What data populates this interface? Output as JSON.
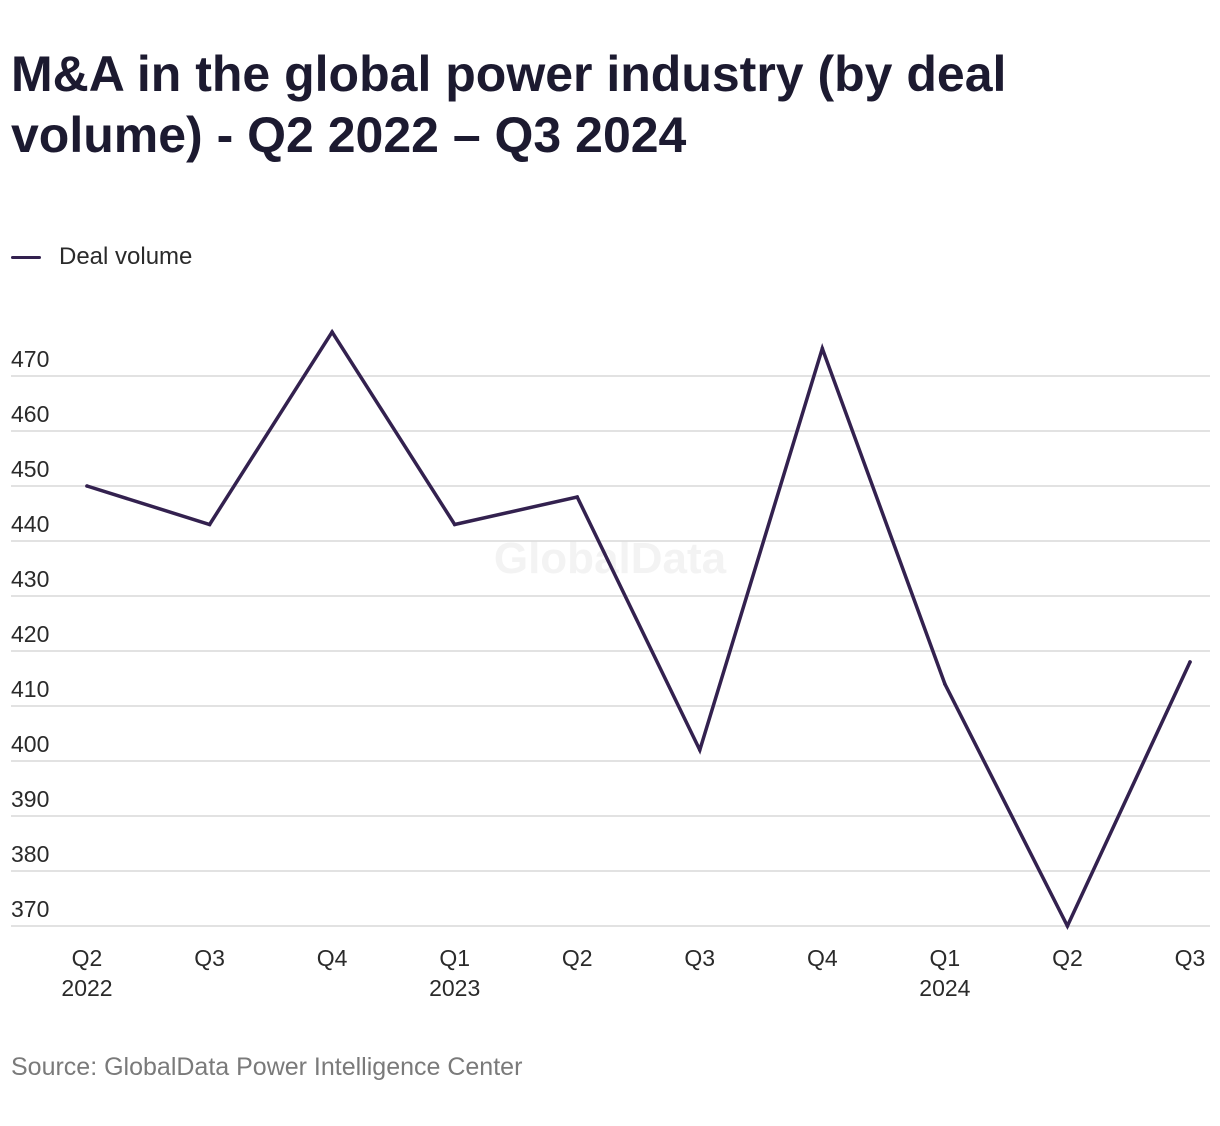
{
  "title": "M&A in the global power industry (by deal volume) - Q2 2022 – Q3 2024",
  "legend": {
    "label": "Deal volume"
  },
  "watermark": "GlobalData",
  "source": "Source: GlobalData Power Intelligence Center",
  "colors": {
    "line": "#33214f",
    "grid": "#d9d9d9",
    "tick_text": "#2a2a2a",
    "title": "#1c1a30",
    "source": "#7a7a7a",
    "watermark": "#f3f3f3"
  },
  "chart_data": {
    "type": "line",
    "title": "M&A in the global power industry (by deal volume) - Q2 2022 – Q3 2024",
    "categories": [
      "Q2 2022",
      "Q3 2022",
      "Q4 2022",
      "Q1 2023",
      "Q2 2023",
      "Q3 2023",
      "Q4 2023",
      "Q1 2024",
      "Q2 2024",
      "Q3 2024"
    ],
    "x_tick_labels": [
      [
        "Q2",
        "2022"
      ],
      [
        "Q3",
        ""
      ],
      [
        "Q4",
        ""
      ],
      [
        "Q1",
        "2023"
      ],
      [
        "Q2",
        ""
      ],
      [
        "Q3",
        ""
      ],
      [
        "Q4",
        ""
      ],
      [
        "Q1",
        "2024"
      ],
      [
        "Q2",
        ""
      ],
      [
        "Q3",
        ""
      ]
    ],
    "series": [
      {
        "name": "Deal volume",
        "values": [
          450,
          443,
          478,
          443,
          448,
          402,
          475,
          414,
          370,
          418
        ]
      }
    ],
    "ylim": [
      370,
      470
    ],
    "y_ticks": [
      370,
      380,
      390,
      400,
      410,
      420,
      430,
      440,
      450,
      460,
      470
    ],
    "xlabel": "",
    "ylabel": "",
    "grid": true,
    "legend_position": "top-left"
  }
}
